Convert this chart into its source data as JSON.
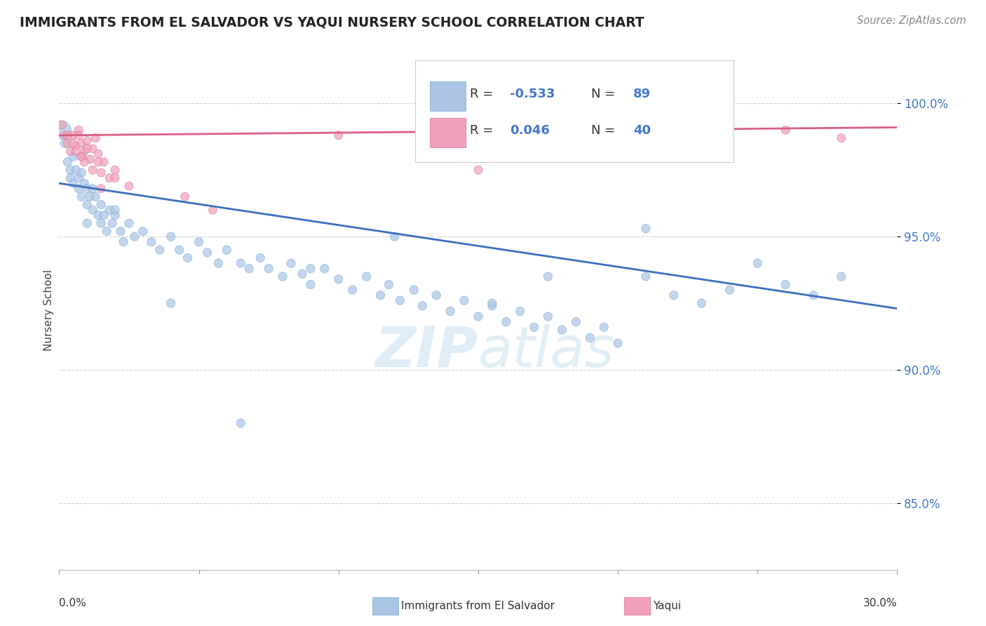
{
  "title": "IMMIGRANTS FROM EL SALVADOR VS YAQUI NURSERY SCHOOL CORRELATION CHART",
  "source": "Source: ZipAtlas.com",
  "ylabel": "Nursery School",
  "yticks": [
    0.85,
    0.9,
    0.95,
    1.0
  ],
  "ytick_labels": [
    "85.0%",
    "90.0%",
    "95.0%",
    "100.0%"
  ],
  "xlim": [
    0.0,
    0.3
  ],
  "ylim": [
    0.825,
    1.02
  ],
  "legend_R1": "-0.533",
  "legend_N1": "89",
  "legend_R2": "0.046",
  "legend_N2": "40",
  "blue_color": "#aac4e4",
  "pink_color": "#f0a0b8",
  "blue_line_color": "#3a6fbf",
  "pink_line_color": "#d96080",
  "blue_trend_x": [
    0.0,
    0.3
  ],
  "blue_trend_y": [
    0.97,
    0.923
  ],
  "pink_trend_x": [
    0.0,
    0.3
  ],
  "pink_trend_y": [
    0.988,
    0.991
  ],
  "blue_x": [
    0.001,
    0.002,
    0.003,
    0.004,
    0.004,
    0.005,
    0.005,
    0.006,
    0.007,
    0.007,
    0.008,
    0.008,
    0.009,
    0.01,
    0.01,
    0.011,
    0.012,
    0.012,
    0.013,
    0.014,
    0.015,
    0.015,
    0.016,
    0.017,
    0.018,
    0.019,
    0.02,
    0.022,
    0.023,
    0.025,
    0.027,
    0.03,
    0.033,
    0.036,
    0.04,
    0.043,
    0.046,
    0.05,
    0.053,
    0.057,
    0.06,
    0.065,
    0.068,
    0.072,
    0.075,
    0.08,
    0.083,
    0.087,
    0.09,
    0.095,
    0.1,
    0.105,
    0.11,
    0.115,
    0.118,
    0.122,
    0.127,
    0.13,
    0.135,
    0.14,
    0.145,
    0.15,
    0.155,
    0.16,
    0.165,
    0.17,
    0.175,
    0.18,
    0.185,
    0.19,
    0.195,
    0.2,
    0.21,
    0.22,
    0.23,
    0.24,
    0.25,
    0.26,
    0.27,
    0.28,
    0.21,
    0.175,
    0.155,
    0.12,
    0.09,
    0.065,
    0.04,
    0.02,
    0.01
  ],
  "blue_y": [
    0.99,
    0.985,
    0.978,
    0.975,
    0.972,
    0.98,
    0.97,
    0.975,
    0.972,
    0.968,
    0.974,
    0.965,
    0.97,
    0.968,
    0.962,
    0.965,
    0.96,
    0.968,
    0.965,
    0.958,
    0.962,
    0.955,
    0.958,
    0.952,
    0.96,
    0.955,
    0.958,
    0.952,
    0.948,
    0.955,
    0.95,
    0.952,
    0.948,
    0.945,
    0.95,
    0.945,
    0.942,
    0.948,
    0.944,
    0.94,
    0.945,
    0.94,
    0.938,
    0.942,
    0.938,
    0.935,
    0.94,
    0.936,
    0.932,
    0.938,
    0.934,
    0.93,
    0.935,
    0.928,
    0.932,
    0.926,
    0.93,
    0.924,
    0.928,
    0.922,
    0.926,
    0.92,
    0.924,
    0.918,
    0.922,
    0.916,
    0.92,
    0.915,
    0.918,
    0.912,
    0.916,
    0.91,
    0.935,
    0.928,
    0.925,
    0.93,
    0.94,
    0.932,
    0.928,
    0.935,
    0.953,
    0.935,
    0.925,
    0.95,
    0.938,
    0.88,
    0.925,
    0.96,
    0.955
  ],
  "blue_sizes": [
    350,
    80,
    80,
    80,
    80,
    80,
    80,
    80,
    80,
    80,
    80,
    80,
    80,
    80,
    80,
    80,
    80,
    80,
    80,
    80,
    80,
    80,
    80,
    80,
    80,
    80,
    80,
    80,
    80,
    80,
    80,
    80,
    80,
    80,
    80,
    80,
    80,
    80,
    80,
    80,
    80,
    80,
    80,
    80,
    80,
    80,
    80,
    80,
    80,
    80,
    80,
    80,
    80,
    80,
    80,
    80,
    80,
    80,
    80,
    80,
    80,
    80,
    80,
    80,
    80,
    80,
    80,
    80,
    80,
    80,
    80,
    80,
    80,
    80,
    80,
    80,
    80,
    80,
    80,
    80,
    80,
    80,
    80,
    80,
    80,
    80,
    80,
    80,
    80
  ],
  "pink_x": [
    0.001,
    0.002,
    0.003,
    0.004,
    0.005,
    0.006,
    0.007,
    0.008,
    0.009,
    0.01,
    0.011,
    0.012,
    0.013,
    0.014,
    0.015,
    0.016,
    0.018,
    0.02,
    0.025,
    0.005,
    0.008,
    0.012,
    0.006,
    0.009,
    0.015,
    0.02,
    0.1,
    0.13,
    0.26,
    0.28,
    0.045,
    0.055,
    0.15,
    0.21,
    0.215,
    0.007,
    0.01,
    0.014,
    0.003,
    0.008
  ],
  "pink_y": [
    0.992,
    0.988,
    0.985,
    0.982,
    0.988,
    0.984,
    0.99,
    0.985,
    0.982,
    0.986,
    0.979,
    0.983,
    0.987,
    0.981,
    0.974,
    0.978,
    0.972,
    0.975,
    0.969,
    0.985,
    0.98,
    0.975,
    0.982,
    0.978,
    0.968,
    0.972,
    0.988,
    0.985,
    0.99,
    0.987,
    0.965,
    0.96,
    0.975,
    0.988,
    0.985,
    0.988,
    0.983,
    0.978,
    0.988,
    0.98
  ]
}
